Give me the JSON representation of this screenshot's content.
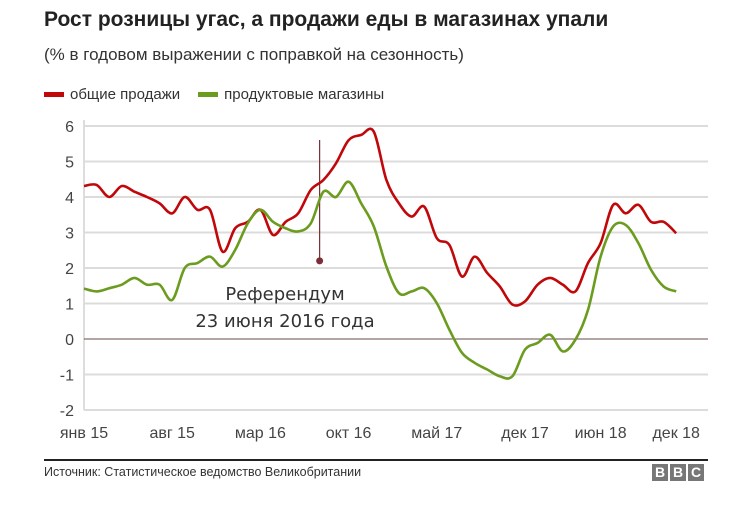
{
  "title": "Рост розницы угас, а продажи еды в магазинах упали",
  "subtitle": "(% в годовом выражении с поправкой на сезонность)",
  "source": "Источник: Статистическое ведомство Великобритании",
  "logo": "BBC",
  "chart_data": {
    "type": "line",
    "title": "Рост розницы угас, а продажи еды в магазинах упали",
    "subtitle": "(% в годовом выражении с поправкой на сезонность)",
    "xlabel": "",
    "ylabel": "",
    "ylim": [
      -2,
      6
    ],
    "yticks": [
      "6",
      "5",
      "4",
      "3",
      "2",
      "1",
      "0",
      "-1",
      "-2"
    ],
    "xticks": [
      {
        "label": "янв 15",
        "month": 0
      },
      {
        "label": "авг 15",
        "month": 7
      },
      {
        "label": "мар 16",
        "month": 14
      },
      {
        "label": "окт 16",
        "month": 21
      },
      {
        "label": "май 17",
        "month": 28
      },
      {
        "label": "дек 17",
        "month": 35
      },
      {
        "label": "июн 18",
        "month": 41
      },
      {
        "label": "дек 18",
        "month": 47
      }
    ],
    "x_start": "янв 15",
    "x_end": "дек 18",
    "grid": true,
    "legend": "top-left",
    "series": [
      {
        "name": "общие продажи",
        "color": "#c0080a",
        "values": [
          4.31,
          4.34,
          4.0,
          4.31,
          4.15,
          4.0,
          3.82,
          3.54,
          4.0,
          3.64,
          3.64,
          2.46,
          3.12,
          3.3,
          3.64,
          2.93,
          3.3,
          3.54,
          4.2,
          4.48,
          4.95,
          5.6,
          5.75,
          5.84,
          4.48,
          3.82,
          3.45,
          3.73,
          2.84,
          2.65,
          1.76,
          2.32,
          1.86,
          1.48,
          0.97,
          1.06,
          1.53,
          1.72,
          1.53,
          1.34,
          2.14,
          2.7,
          3.78,
          3.54,
          3.78,
          3.3,
          3.3,
          2.98
        ]
      },
      {
        "name": "продуктовые магазины",
        "color": "#6b9c1f",
        "values": [
          1.42,
          1.34,
          1.43,
          1.53,
          1.72,
          1.53,
          1.53,
          1.1,
          2.0,
          2.14,
          2.32,
          2.04,
          2.51,
          3.26,
          3.64,
          3.3,
          3.12,
          3.03,
          3.26,
          4.15,
          4.0,
          4.43,
          3.82,
          3.17,
          2.04,
          1.29,
          1.34,
          1.43,
          1.01,
          0.26,
          -0.39,
          -0.67,
          -0.86,
          -1.05,
          -1.05,
          -0.3,
          -0.11,
          0.12,
          -0.35,
          -0.02,
          0.82,
          2.32,
          3.17,
          3.21,
          2.7,
          1.95,
          1.48,
          1.34
        ]
      }
    ],
    "annotations": [
      {
        "label_line1": "Референдум",
        "label_line2": "23 июня 2016 года",
        "month": 18.7,
        "marker_value": 2.2,
        "color": "#7b2e33"
      }
    ]
  }
}
